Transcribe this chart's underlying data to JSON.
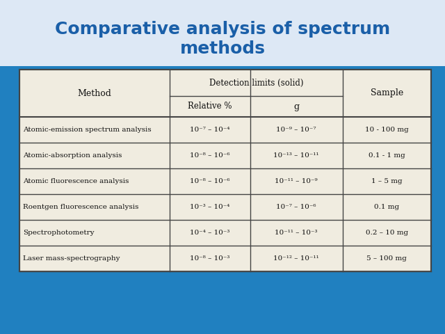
{
  "title": "Comparative analysis of spectrum\nmethods",
  "title_color": "#1a5fa8",
  "title_fontsize": 18,
  "bg_color": "#2080c0",
  "table_bg": "#f0ece0",
  "table_border": "#555555",
  "text_color": "#111111",
  "header_rows": [
    [
      "Method",
      "Detection limits (solid)",
      "Sample"
    ],
    [
      "",
      "Relative %",
      "g",
      ""
    ]
  ],
  "rows": [
    [
      "Atomic-emission spectrum analysis",
      "10⁻⁷ – 10⁻⁴",
      "10⁻⁹ – 10⁻⁷",
      "10 - 100 mg"
    ],
    [
      "Atomic-absorption analysis",
      "10⁻⁸ – 10⁻⁶",
      "10⁻¹³ – 10⁻¹¹",
      "0.1 - 1 mg"
    ],
    [
      "Atomic fluorescence analysis",
      "10⁻⁸ – 10⁻⁶",
      "10⁻¹¹ – 10⁻⁹",
      "1 – 5 mg"
    ],
    [
      "Roentgen fluorescence analysis",
      "10⁻³ – 10⁻⁴",
      "10⁻⁷ – 10⁻⁶",
      "0.1 mg"
    ],
    [
      "Spectrophotometry",
      "10⁻⁴ – 10⁻³",
      "10⁻¹¹ – 10⁻³",
      "0.2 – 10 mg"
    ],
    [
      "Laser mass-spectrography",
      "10⁻⁸ – 10⁻³",
      "10⁻¹² – 10⁻¹¹",
      "5 – 100 mg"
    ]
  ],
  "title_bg": "#e8e8f8",
  "decoration_color": "#1a6aaa"
}
